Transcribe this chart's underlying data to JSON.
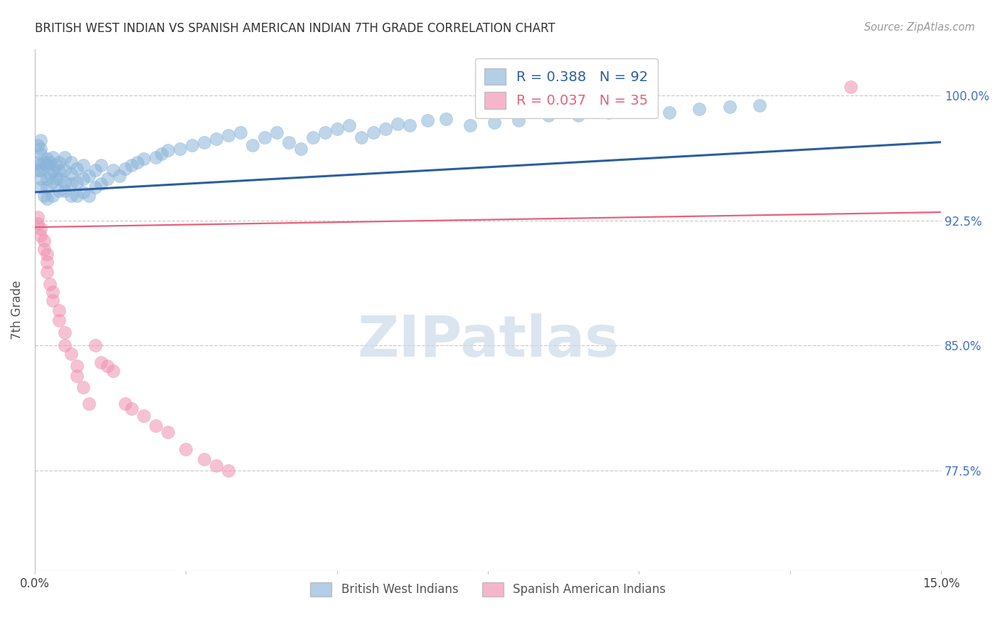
{
  "title": "BRITISH WEST INDIAN VS SPANISH AMERICAN INDIAN 7TH GRADE CORRELATION CHART",
  "source": "Source: ZipAtlas.com",
  "ylabel": "7th Grade",
  "xmin": 0.0,
  "xmax": 0.15,
  "ymin": 0.715,
  "ymax": 1.028,
  "blue_color": "#8ab4d9",
  "pink_color": "#f090b0",
  "blue_line_color": "#2c5f9e",
  "pink_line_color": "#e8607a",
  "blue_label": "British West Indians",
  "pink_label": "Spanish American Indians",
  "background_color": "#ffffff",
  "yticks": [
    0.775,
    0.85,
    0.925,
    1.0
  ],
  "ytick_labels": [
    "77.5%",
    "85.0%",
    "92.5%",
    "100.0%"
  ],
  "blue_x": [
    0.0005,
    0.0005,
    0.0005,
    0.0008,
    0.001,
    0.001,
    0.001,
    0.001,
    0.001,
    0.001,
    0.0015,
    0.0015,
    0.002,
    0.002,
    0.002,
    0.002,
    0.002,
    0.0025,
    0.0025,
    0.003,
    0.003,
    0.003,
    0.003,
    0.0035,
    0.0035,
    0.004,
    0.004,
    0.004,
    0.004,
    0.005,
    0.005,
    0.005,
    0.005,
    0.006,
    0.006,
    0.006,
    0.006,
    0.007,
    0.007,
    0.007,
    0.008,
    0.008,
    0.008,
    0.009,
    0.009,
    0.01,
    0.01,
    0.011,
    0.011,
    0.012,
    0.013,
    0.014,
    0.015,
    0.016,
    0.017,
    0.018,
    0.02,
    0.021,
    0.022,
    0.024,
    0.026,
    0.028,
    0.03,
    0.032,
    0.034,
    0.036,
    0.038,
    0.04,
    0.042,
    0.044,
    0.046,
    0.048,
    0.05,
    0.052,
    0.054,
    0.056,
    0.058,
    0.06,
    0.062,
    0.065,
    0.068,
    0.072,
    0.076,
    0.08,
    0.085,
    0.09,
    0.095,
    0.1,
    0.105,
    0.11,
    0.115,
    0.12
  ],
  "blue_y": [
    0.96,
    0.955,
    0.97,
    0.958,
    0.945,
    0.95,
    0.955,
    0.965,
    0.968,
    0.973,
    0.94,
    0.96,
    0.938,
    0.945,
    0.95,
    0.958,
    0.962,
    0.953,
    0.96,
    0.94,
    0.948,
    0.955,
    0.963,
    0.95,
    0.958,
    0.943,
    0.95,
    0.955,
    0.96,
    0.943,
    0.948,
    0.955,
    0.963,
    0.94,
    0.947,
    0.953,
    0.96,
    0.94,
    0.948,
    0.956,
    0.942,
    0.95,
    0.958,
    0.94,
    0.952,
    0.945,
    0.955,
    0.947,
    0.958,
    0.95,
    0.955,
    0.952,
    0.956,
    0.958,
    0.96,
    0.962,
    0.963,
    0.965,
    0.967,
    0.968,
    0.97,
    0.972,
    0.974,
    0.976,
    0.978,
    0.97,
    0.975,
    0.978,
    0.972,
    0.968,
    0.975,
    0.978,
    0.98,
    0.982,
    0.975,
    0.978,
    0.98,
    0.983,
    0.982,
    0.985,
    0.986,
    0.982,
    0.984,
    0.985,
    0.988,
    0.988,
    0.99,
    0.992,
    0.99,
    0.992,
    0.993,
    0.994
  ],
  "pink_x": [
    0.0005,
    0.0005,
    0.001,
    0.001,
    0.0015,
    0.0015,
    0.002,
    0.002,
    0.002,
    0.0025,
    0.003,
    0.003,
    0.004,
    0.004,
    0.005,
    0.005,
    0.006,
    0.007,
    0.007,
    0.008,
    0.009,
    0.01,
    0.011,
    0.012,
    0.013,
    0.015,
    0.016,
    0.018,
    0.02,
    0.022,
    0.025,
    0.028,
    0.03,
    0.032,
    0.135
  ],
  "pink_y": [
    0.927,
    0.923,
    0.92,
    0.916,
    0.913,
    0.908,
    0.905,
    0.9,
    0.894,
    0.887,
    0.882,
    0.877,
    0.871,
    0.865,
    0.858,
    0.85,
    0.845,
    0.838,
    0.832,
    0.825,
    0.815,
    0.85,
    0.84,
    0.838,
    0.835,
    0.815,
    0.812,
    0.808,
    0.802,
    0.798,
    0.788,
    0.782,
    0.778,
    0.775,
    1.005
  ],
  "blue_line_x0": 0.0,
  "blue_line_x1": 0.15,
  "blue_line_y0": 0.942,
  "blue_line_y1": 0.972,
  "pink_line_x0": 0.0,
  "pink_line_x1": 0.15,
  "pink_line_y0": 0.921,
  "pink_line_y1": 0.93
}
